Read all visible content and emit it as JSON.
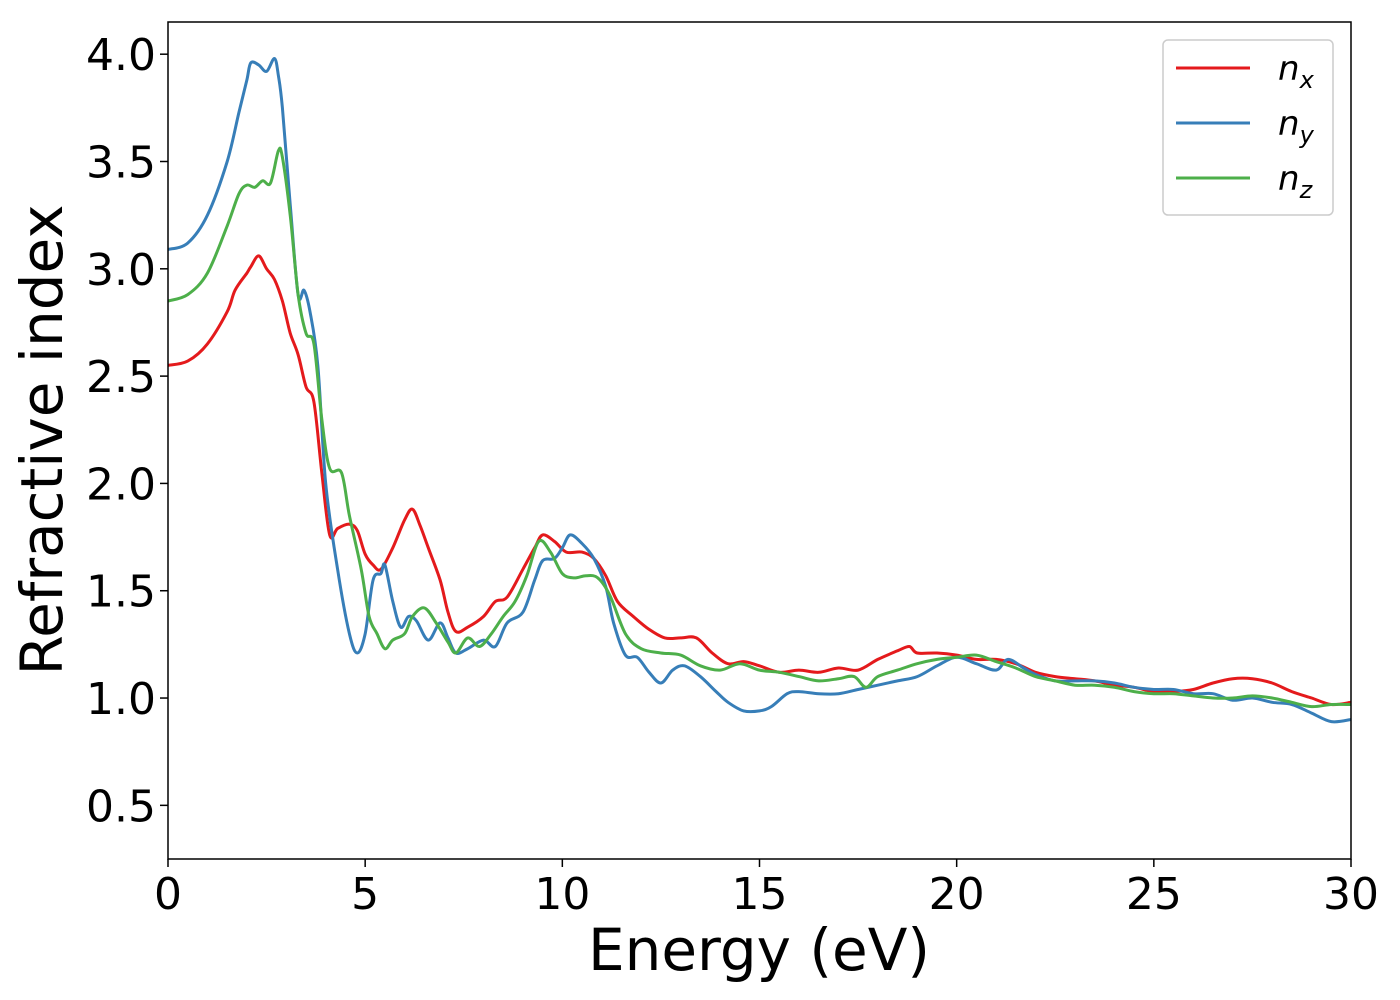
{
  "chart_data": {
    "type": "line",
    "title": "",
    "xlabel": "Energy (eV)",
    "ylabel": "Refractive index",
    "xlim": [
      0,
      30
    ],
    "ylim": [
      0.25,
      4.15
    ],
    "xticks": [
      0,
      5,
      10,
      15,
      20,
      25,
      30
    ],
    "yticks": [
      0.5,
      1.0,
      1.5,
      2.0,
      2.5,
      3.0,
      3.5,
      4.0
    ],
    "xtick_labels": [
      "0",
      "5",
      "10",
      "15",
      "20",
      "25",
      "30"
    ],
    "ytick_labels": [
      "0.5",
      "1.0",
      "1.5",
      "2.0",
      "2.5",
      "3.0",
      "3.5",
      "4.0"
    ],
    "grid": false,
    "legend_position": "top-right",
    "series": [
      {
        "name": "n",
        "subscript": "x",
        "color": "#e41a1c",
        "points": [
          [
            0,
            2.55
          ],
          [
            0.5,
            2.57
          ],
          [
            1,
            2.65
          ],
          [
            1.5,
            2.8
          ],
          [
            1.7,
            2.9
          ],
          [
            2,
            2.98
          ],
          [
            2.1,
            3.01
          ],
          [
            2.3,
            3.06
          ],
          [
            2.5,
            3.0
          ],
          [
            2.7,
            2.95
          ],
          [
            2.9,
            2.85
          ],
          [
            3.1,
            2.7
          ],
          [
            3.3,
            2.6
          ],
          [
            3.5,
            2.45
          ],
          [
            3.7,
            2.38
          ],
          [
            3.9,
            2.05
          ],
          [
            4.1,
            1.76
          ],
          [
            4.3,
            1.79
          ],
          [
            4.6,
            1.81
          ],
          [
            4.8,
            1.78
          ],
          [
            5,
            1.67
          ],
          [
            5.2,
            1.62
          ],
          [
            5.4,
            1.6
          ],
          [
            5.7,
            1.7
          ],
          [
            6,
            1.83
          ],
          [
            6.2,
            1.88
          ],
          [
            6.4,
            1.8
          ],
          [
            6.6,
            1.7
          ],
          [
            6.9,
            1.55
          ],
          [
            7.1,
            1.4
          ],
          [
            7.3,
            1.31
          ],
          [
            7.6,
            1.33
          ],
          [
            8,
            1.38
          ],
          [
            8.3,
            1.45
          ],
          [
            8.6,
            1.47
          ],
          [
            9,
            1.6
          ],
          [
            9.3,
            1.7
          ],
          [
            9.5,
            1.76
          ],
          [
            9.8,
            1.73
          ],
          [
            10.1,
            1.68
          ],
          [
            10.5,
            1.68
          ],
          [
            10.8,
            1.65
          ],
          [
            11.1,
            1.57
          ],
          [
            11.4,
            1.45
          ],
          [
            11.8,
            1.38
          ],
          [
            12.2,
            1.32
          ],
          [
            12.6,
            1.28
          ],
          [
            13,
            1.28
          ],
          [
            13.4,
            1.28
          ],
          [
            13.8,
            1.21
          ],
          [
            14.2,
            1.16
          ],
          [
            14.6,
            1.17
          ],
          [
            15,
            1.15
          ],
          [
            15.5,
            1.12
          ],
          [
            16,
            1.13
          ],
          [
            16.5,
            1.12
          ],
          [
            17,
            1.14
          ],
          [
            17.5,
            1.13
          ],
          [
            18,
            1.18
          ],
          [
            18.5,
            1.22
          ],
          [
            18.8,
            1.24
          ],
          [
            19,
            1.21
          ],
          [
            19.5,
            1.21
          ],
          [
            20,
            1.2
          ],
          [
            20.5,
            1.18
          ],
          [
            21,
            1.18
          ],
          [
            21.5,
            1.16
          ],
          [
            22,
            1.12
          ],
          [
            22.5,
            1.1
          ],
          [
            23,
            1.09
          ],
          [
            23.5,
            1.08
          ],
          [
            24,
            1.06
          ],
          [
            24.5,
            1.05
          ],
          [
            25,
            1.03
          ],
          [
            25.5,
            1.03
          ],
          [
            26,
            1.04
          ],
          [
            26.5,
            1.07
          ],
          [
            27,
            1.09
          ],
          [
            27.5,
            1.09
          ],
          [
            28,
            1.07
          ],
          [
            28.5,
            1.03
          ],
          [
            29,
            1.0
          ],
          [
            29.5,
            0.97
          ],
          [
            30,
            0.98
          ]
        ]
      },
      {
        "name": "n",
        "subscript": "y",
        "color": "#377eb8",
        "points": [
          [
            0,
            3.09
          ],
          [
            0.5,
            3.12
          ],
          [
            1,
            3.25
          ],
          [
            1.5,
            3.5
          ],
          [
            1.8,
            3.73
          ],
          [
            2,
            3.88
          ],
          [
            2.1,
            3.96
          ],
          [
            2.3,
            3.95
          ],
          [
            2.5,
            3.92
          ],
          [
            2.7,
            3.98
          ],
          [
            2.8,
            3.9
          ],
          [
            2.9,
            3.75
          ],
          [
            3.1,
            3.3
          ],
          [
            3.3,
            2.88
          ],
          [
            3.45,
            2.9
          ],
          [
            3.6,
            2.8
          ],
          [
            3.8,
            2.55
          ],
          [
            4,
            2.0
          ],
          [
            4.3,
            1.6
          ],
          [
            4.6,
            1.3
          ],
          [
            4.8,
            1.21
          ],
          [
            5,
            1.3
          ],
          [
            5.2,
            1.55
          ],
          [
            5.4,
            1.58
          ],
          [
            5.5,
            1.62
          ],
          [
            5.7,
            1.45
          ],
          [
            5.9,
            1.33
          ],
          [
            6.1,
            1.38
          ],
          [
            6.3,
            1.36
          ],
          [
            6.6,
            1.27
          ],
          [
            6.9,
            1.35
          ],
          [
            7.1,
            1.28
          ],
          [
            7.3,
            1.21
          ],
          [
            7.6,
            1.23
          ],
          [
            8,
            1.27
          ],
          [
            8.3,
            1.24
          ],
          [
            8.6,
            1.35
          ],
          [
            9,
            1.4
          ],
          [
            9.3,
            1.55
          ],
          [
            9.5,
            1.64
          ],
          [
            9.8,
            1.65
          ],
          [
            10,
            1.7
          ],
          [
            10.2,
            1.76
          ],
          [
            10.5,
            1.72
          ],
          [
            10.8,
            1.65
          ],
          [
            11.1,
            1.52
          ],
          [
            11.3,
            1.35
          ],
          [
            11.6,
            1.2
          ],
          [
            11.9,
            1.19
          ],
          [
            12.2,
            1.12
          ],
          [
            12.5,
            1.07
          ],
          [
            12.8,
            1.13
          ],
          [
            13.1,
            1.15
          ],
          [
            13.5,
            1.1
          ],
          [
            13.9,
            1.03
          ],
          [
            14.2,
            0.98
          ],
          [
            14.6,
            0.94
          ],
          [
            15,
            0.94
          ],
          [
            15.3,
            0.96
          ],
          [
            15.7,
            1.02
          ],
          [
            16,
            1.03
          ],
          [
            16.5,
            1.02
          ],
          [
            17,
            1.02
          ],
          [
            17.5,
            1.04
          ],
          [
            18,
            1.06
          ],
          [
            18.5,
            1.08
          ],
          [
            19,
            1.1
          ],
          [
            19.5,
            1.15
          ],
          [
            20,
            1.19
          ],
          [
            20.5,
            1.16
          ],
          [
            21,
            1.13
          ],
          [
            21.3,
            1.18
          ],
          [
            21.7,
            1.14
          ],
          [
            22,
            1.11
          ],
          [
            22.5,
            1.08
          ],
          [
            23,
            1.08
          ],
          [
            23.5,
            1.08
          ],
          [
            24,
            1.07
          ],
          [
            24.5,
            1.05
          ],
          [
            25,
            1.04
          ],
          [
            25.5,
            1.04
          ],
          [
            26,
            1.02
          ],
          [
            26.5,
            1.02
          ],
          [
            27,
            0.99
          ],
          [
            27.5,
            1.0
          ],
          [
            28,
            0.98
          ],
          [
            28.5,
            0.97
          ],
          [
            29,
            0.93
          ],
          [
            29.5,
            0.89
          ],
          [
            30,
            0.9
          ]
        ]
      },
      {
        "name": "n",
        "subscript": "z",
        "color": "#4daf4a",
        "points": [
          [
            0,
            2.85
          ],
          [
            0.5,
            2.88
          ],
          [
            1,
            2.98
          ],
          [
            1.5,
            3.2
          ],
          [
            1.8,
            3.35
          ],
          [
            2,
            3.39
          ],
          [
            2.2,
            3.38
          ],
          [
            2.4,
            3.41
          ],
          [
            2.6,
            3.4
          ],
          [
            2.8,
            3.55
          ],
          [
            2.9,
            3.52
          ],
          [
            3.1,
            3.25
          ],
          [
            3.3,
            2.88
          ],
          [
            3.5,
            2.7
          ],
          [
            3.7,
            2.65
          ],
          [
            3.9,
            2.3
          ],
          [
            4.1,
            2.07
          ],
          [
            4.4,
            2.05
          ],
          [
            4.6,
            1.85
          ],
          [
            4.9,
            1.6
          ],
          [
            5.1,
            1.38
          ],
          [
            5.3,
            1.3
          ],
          [
            5.5,
            1.23
          ],
          [
            5.7,
            1.27
          ],
          [
            6,
            1.3
          ],
          [
            6.2,
            1.38
          ],
          [
            6.5,
            1.42
          ],
          [
            6.8,
            1.35
          ],
          [
            7.1,
            1.26
          ],
          [
            7.3,
            1.21
          ],
          [
            7.6,
            1.28
          ],
          [
            7.9,
            1.24
          ],
          [
            8.2,
            1.3
          ],
          [
            8.5,
            1.38
          ],
          [
            8.8,
            1.45
          ],
          [
            9.1,
            1.57
          ],
          [
            9.4,
            1.73
          ],
          [
            9.7,
            1.68
          ],
          [
            10,
            1.58
          ],
          [
            10.3,
            1.56
          ],
          [
            10.6,
            1.57
          ],
          [
            10.9,
            1.56
          ],
          [
            11.2,
            1.48
          ],
          [
            11.6,
            1.3
          ],
          [
            12,
            1.23
          ],
          [
            12.5,
            1.21
          ],
          [
            13,
            1.2
          ],
          [
            13.5,
            1.15
          ],
          [
            14,
            1.13
          ],
          [
            14.5,
            1.16
          ],
          [
            15,
            1.13
          ],
          [
            15.5,
            1.12
          ],
          [
            16,
            1.1
          ],
          [
            16.5,
            1.08
          ],
          [
            17,
            1.09
          ],
          [
            17.4,
            1.1
          ],
          [
            17.7,
            1.05
          ],
          [
            18,
            1.1
          ],
          [
            18.5,
            1.13
          ],
          [
            19,
            1.16
          ],
          [
            19.5,
            1.18
          ],
          [
            20,
            1.19
          ],
          [
            20.5,
            1.2
          ],
          [
            21,
            1.17
          ],
          [
            21.5,
            1.14
          ],
          [
            22,
            1.1
          ],
          [
            22.5,
            1.08
          ],
          [
            23,
            1.06
          ],
          [
            23.5,
            1.06
          ],
          [
            24,
            1.05
          ],
          [
            24.5,
            1.03
          ],
          [
            25,
            1.02
          ],
          [
            25.5,
            1.02
          ],
          [
            26,
            1.01
          ],
          [
            26.5,
            1.0
          ],
          [
            27,
            1.0
          ],
          [
            27.5,
            1.01
          ],
          [
            28,
            1.0
          ],
          [
            28.5,
            0.98
          ],
          [
            29,
            0.96
          ],
          [
            29.5,
            0.97
          ],
          [
            30,
            0.97
          ]
        ]
      }
    ]
  }
}
